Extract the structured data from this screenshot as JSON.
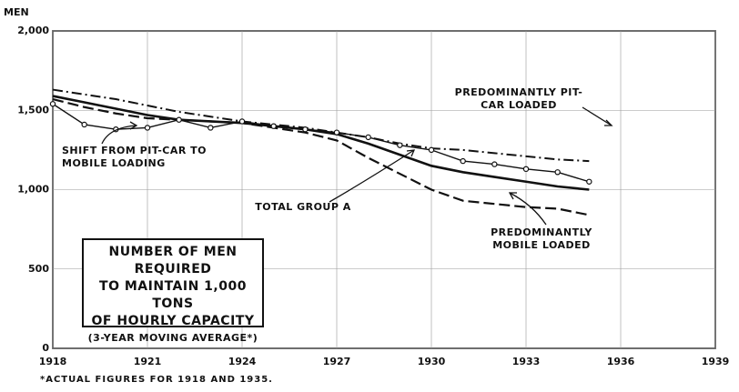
{
  "chart_data": {
    "type": "line",
    "y_axis_label": "MEN",
    "title_lines": [
      "NUMBER OF MEN REQUIRED",
      "TO MAINTAIN 1,000 TONS",
      "OF HOURLY CAPACITY"
    ],
    "subtitle": "(3-YEAR MOVING AVERAGE*)",
    "footnote": "*ACTUAL FIGURES FOR 1918 AND 1935.",
    "x": [
      1918,
      1919,
      1920,
      1921,
      1922,
      1923,
      1924,
      1925,
      1926,
      1927,
      1928,
      1929,
      1930,
      1931,
      1932,
      1933,
      1934,
      1935
    ],
    "xlim": [
      1918,
      1939
    ],
    "xticks": [
      1918,
      1921,
      1924,
      1927,
      1930,
      1933,
      1936,
      1939
    ],
    "ylim": [
      0,
      2000
    ],
    "yticks": [
      0,
      500,
      {
        "value": 1000,
        "label": "1,000"
      },
      {
        "value": 1500,
        "label": "1,500"
      },
      {
        "value": 2000,
        "label": "2,000"
      }
    ],
    "grid": true,
    "series": [
      {
        "name": "TOTAL GROUP A",
        "color": "#111",
        "style": "solid",
        "values": [
          1590,
          1550,
          1510,
          1470,
          1440,
          1430,
          1420,
          1400,
          1380,
          1350,
          1290,
          1220,
          1150,
          1110,
          1080,
          1050,
          1020,
          1000
        ]
      },
      {
        "name": "PREDOMINANTLY PIT-CAR LOADED",
        "color": "#111",
        "style": "dash-dot",
        "values": [
          1630,
          1600,
          1570,
          1530,
          1490,
          1460,
          1430,
          1410,
          1390,
          1360,
          1330,
          1290,
          1260,
          1250,
          1230,
          1210,
          1190,
          1180
        ]
      },
      {
        "name": "PREDOMINANTLY MOBILE LOADED",
        "color": "#111",
        "style": "dashed",
        "values": [
          1570,
          1520,
          1480,
          1450,
          1440,
          1430,
          1420,
          1390,
          1360,
          1310,
          1200,
          1100,
          1000,
          930,
          910,
          890,
          880,
          840
        ]
      },
      {
        "name": "SHIFT FROM PIT-CAR TO MOBILE LOADING",
        "color": "#111",
        "style": "circles",
        "values": [
          1540,
          1410,
          1380,
          1390,
          1440,
          1390,
          1430,
          1400,
          1380,
          1360,
          1330,
          1280,
          1250,
          1180,
          1160,
          1130,
          1110,
          1050
        ]
      }
    ]
  }
}
